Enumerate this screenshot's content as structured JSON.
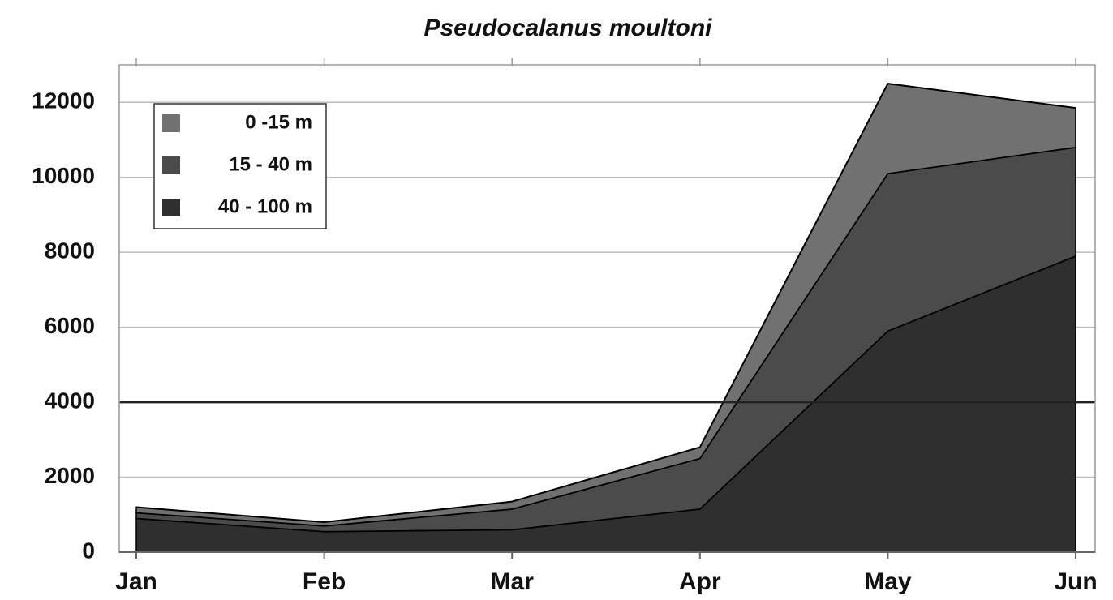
{
  "chart_data": {
    "type": "stacked_area",
    "title": "Pseudocalanus moultoni",
    "categories": [
      "Jan",
      "Feb",
      "Mar",
      "Apr",
      "May",
      "Jun"
    ],
    "series": [
      {
        "name": "0 -15 m",
        "color": "#717171",
        "values": [
          150,
          100,
          200,
          300,
          2400,
          1050
        ]
      },
      {
        "name": "15 - 40 m",
        "color": "#4b4b4b",
        "values": [
          150,
          150,
          550,
          1350,
          4200,
          2900
        ]
      },
      {
        "name": "40 - 100 m",
        "color": "#2f2f2f",
        "values": [
          900,
          550,
          600,
          1150,
          5900,
          7900
        ]
      }
    ],
    "ylim": [
      0,
      13000
    ],
    "yticks": [
      0,
      2000,
      4000,
      6000,
      8000,
      10000,
      12000
    ],
    "reference_line": 4000,
    "grid": true,
    "legend": "upper left"
  }
}
